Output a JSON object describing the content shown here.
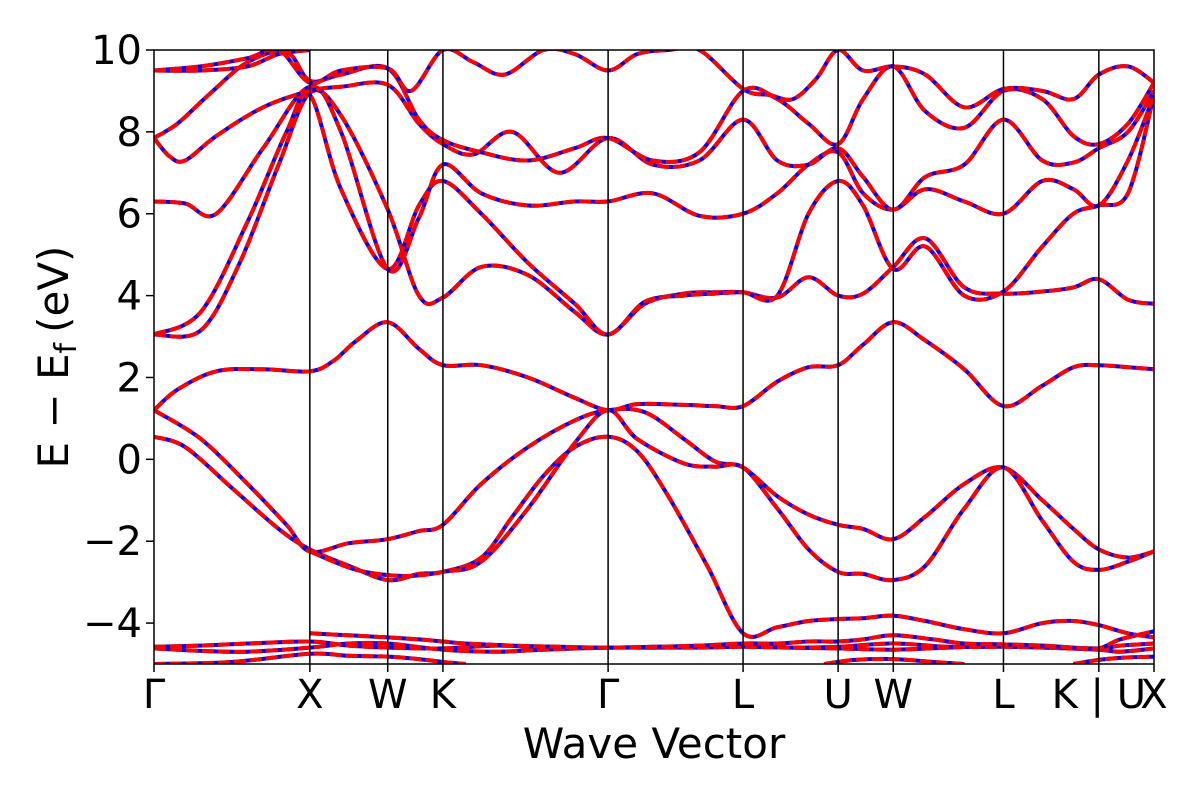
{
  "chart_data": {
    "type": "line",
    "xlabel": "Wave Vector",
    "ylabel": "E − E",
    "ylabel_subscript": "f",
    "ylabel_unit": "(eV)",
    "ylim": [
      -5,
      10
    ],
    "yticks": [
      -4,
      -2,
      0,
      2,
      4,
      6,
      8,
      10
    ],
    "ytick_labels": [
      "−4",
      "−2",
      "0",
      "2",
      "4",
      "6",
      "8",
      "10"
    ],
    "kpath": {
      "labels": [
        "Γ",
        "X",
        "W",
        "K",
        "Γ",
        "L",
        "U",
        "W",
        "L",
        "K | U",
        "X"
      ],
      "positions": [
        0.0,
        1.0,
        1.5,
        1.854,
        2.914,
        3.78,
        4.39,
        4.744,
        5.451,
        6.063,
        6.417
      ]
    },
    "colors": {
      "line_under": "#0000ff",
      "line_over": "#ff0000",
      "vline": "#000000",
      "frame": "#000000"
    },
    "series": [
      {
        "x": [
          0.0,
          0.3,
          0.6,
          1.0,
          1.25,
          1.5,
          1.854,
          2.2,
          2.5,
          2.914,
          3.2,
          3.5,
          3.78,
          4.1,
          4.39,
          4.744,
          5.1,
          5.451,
          5.7,
          6.063,
          6.2,
          6.417
        ],
        "y": [
          -4.58,
          -4.55,
          -4.5,
          -4.45,
          -4.55,
          -4.6,
          -4.62,
          -4.55,
          -4.6,
          -4.6,
          -4.6,
          -4.58,
          -4.55,
          -4.6,
          -4.62,
          -4.65,
          -4.6,
          -4.55,
          -4.58,
          -4.62,
          -4.55,
          -4.5
        ]
      },
      {
        "x": [
          0.0,
          0.3,
          0.6,
          1.0,
          1.25,
          1.5,
          1.854,
          2.2,
          2.5,
          2.914,
          3.2,
          3.5,
          3.78,
          4.1,
          4.39,
          4.744,
          5.1,
          5.451,
          5.7,
          6.063,
          6.2,
          6.417
        ],
        "y": [
          -4.62,
          -4.68,
          -4.7,
          -4.6,
          -4.5,
          -4.5,
          -4.65,
          -4.7,
          -4.65,
          -4.6,
          -4.6,
          -4.6,
          -4.58,
          -4.6,
          -4.58,
          -4.5,
          -4.58,
          -4.58,
          -4.6,
          -4.65,
          -4.7,
          -4.62
        ]
      },
      {
        "x": [
          0.0,
          0.5,
          1.0,
          1.25,
          1.5,
          1.7,
          1.854,
          2.0
        ],
        "y": [
          -5.0,
          -4.95,
          -4.75,
          -4.8,
          -4.82,
          -4.88,
          -4.95,
          -5.0
        ]
      },
      {
        "x": [
          4.3,
          4.5,
          4.744,
          5.0,
          5.2
        ],
        "y": [
          -5.0,
          -4.9,
          -4.88,
          -4.95,
          -5.0
        ]
      },
      {
        "x": [
          5.9,
          6.063,
          6.2,
          6.417
        ],
        "y": [
          -5.0,
          -4.9,
          -4.85,
          -4.82
        ]
      },
      {
        "x": [
          1.0,
          1.25,
          1.5,
          1.7,
          1.854,
          2.0,
          2.3,
          2.6,
          2.914,
          3.2,
          3.5,
          3.78,
          4.0,
          4.2,
          4.39,
          4.55,
          4.744,
          5.0,
          5.2,
          5.451,
          5.7,
          5.9,
          6.063,
          6.2,
          6.417
        ],
        "y": [
          -4.25,
          -4.3,
          -4.35,
          -4.4,
          -4.45,
          -4.5,
          -4.55,
          -4.58,
          -4.6,
          -4.58,
          -4.55,
          -4.5,
          -4.5,
          -4.45,
          -4.45,
          -4.4,
          -4.3,
          -4.4,
          -4.5,
          -4.52,
          -4.55,
          -4.6,
          -4.62,
          -4.4,
          -4.2
        ]
      },
      {
        "x": [
          0.0,
          0.2,
          0.5,
          0.8,
          1.0,
          1.25,
          1.5,
          1.7,
          1.854,
          2.1,
          2.3,
          2.5,
          2.7,
          2.914,
          3.1,
          3.3,
          3.55,
          3.78,
          4.0,
          4.2,
          4.39,
          4.55,
          4.744,
          4.95,
          5.2,
          5.451,
          5.7,
          5.9,
          6.063,
          6.25,
          6.417
        ],
        "y": [
          0.55,
          0.3,
          -0.7,
          -1.7,
          -2.2,
          -2.6,
          -2.95,
          -2.8,
          -2.75,
          -2.4,
          -1.4,
          -0.4,
          0.3,
          0.55,
          0.2,
          -0.9,
          -2.6,
          -4.25,
          -4.1,
          -3.95,
          -3.9,
          -3.88,
          -3.82,
          -3.95,
          -4.15,
          -4.25,
          -4.0,
          -3.95,
          -4.05,
          -4.25,
          -4.35
        ]
      },
      {
        "x": [
          0.0,
          0.3,
          0.6,
          0.85,
          1.0,
          1.25,
          1.5,
          1.7,
          1.854,
          2.1,
          2.4,
          2.7,
          2.914,
          3.15,
          3.4,
          3.6,
          3.78,
          4.0,
          4.2,
          4.39,
          4.55,
          4.744,
          4.95,
          5.2,
          5.451,
          5.7,
          5.9,
          6.063,
          6.25,
          6.417
        ],
        "y": [
          1.2,
          0.5,
          -0.6,
          -1.6,
          -2.25,
          -2.05,
          -1.95,
          -1.75,
          -1.6,
          -0.6,
          0.3,
          0.95,
          1.2,
          1.15,
          0.5,
          -0.05,
          -0.2,
          -0.9,
          -1.35,
          -1.6,
          -1.7,
          -1.95,
          -1.4,
          -0.6,
          -0.2,
          -1.0,
          -1.7,
          -2.2,
          -2.4,
          -2.25
        ]
      },
      {
        "x": [
          1.0,
          1.3,
          1.6,
          1.854,
          2.1,
          2.4,
          2.7,
          2.914,
          3.1,
          3.4,
          3.6,
          3.78,
          4.0,
          4.2,
          4.39,
          4.55,
          4.744,
          4.95,
          5.2,
          5.451,
          5.7,
          5.9,
          6.063,
          6.25,
          6.417
        ],
        "y": [
          -2.25,
          -2.7,
          -2.85,
          -2.75,
          -2.5,
          -1.2,
          0.4,
          1.2,
          0.5,
          -0.1,
          -0.18,
          -0.2,
          -1.2,
          -2.2,
          -2.75,
          -2.8,
          -2.95,
          -2.6,
          -1.2,
          -0.2,
          -1.5,
          -2.5,
          -2.7,
          -2.5,
          -2.25
        ]
      },
      {
        "x": [
          0.0,
          0.15,
          0.4,
          0.7,
          1.0,
          1.15,
          1.3,
          1.5,
          1.7,
          1.854,
          2.1,
          2.4,
          2.7,
          2.914,
          3.1,
          3.4,
          3.6,
          3.78,
          4.0,
          4.2,
          4.39,
          4.55,
          4.744,
          4.95,
          5.2,
          5.451,
          5.7,
          5.9,
          6.063,
          6.25,
          6.417
        ],
        "y": [
          1.2,
          1.7,
          2.15,
          2.2,
          2.15,
          2.4,
          2.9,
          3.35,
          2.7,
          2.3,
          2.3,
          2.0,
          1.5,
          1.2,
          1.35,
          1.33,
          1.3,
          1.3,
          1.9,
          2.25,
          2.3,
          2.8,
          3.35,
          2.9,
          2.2,
          1.3,
          1.8,
          2.25,
          2.3,
          2.25,
          2.2
        ]
      },
      {
        "x": [
          0.0,
          0.3,
          0.55,
          0.8,
          1.0,
          1.2,
          1.5,
          1.7,
          1.854,
          2.1,
          2.4,
          2.7,
          2.914,
          3.15,
          3.4,
          3.6,
          3.78,
          4.0,
          4.2,
          4.39,
          4.55,
          4.744,
          4.95,
          5.2,
          5.451,
          5.7,
          5.9,
          6.063,
          6.25,
          6.417
        ],
        "y": [
          3.05,
          3.15,
          4.8,
          7.2,
          8.95,
          8.4,
          6.1,
          4.0,
          3.95,
          4.7,
          4.5,
          3.6,
          3.05,
          3.8,
          4.05,
          4.08,
          4.08,
          3.95,
          4.45,
          4.0,
          4.05,
          4.7,
          5.4,
          4.2,
          4.05,
          4.1,
          4.2,
          4.4,
          3.9,
          3.8
        ]
      },
      {
        "x": [
          0.0,
          0.3,
          0.6,
          0.85,
          1.0,
          1.2,
          1.5,
          1.7,
          1.854,
          2.1,
          2.4,
          2.7,
          2.914,
          3.15,
          3.4,
          3.6,
          3.78,
          4.0,
          4.2,
          4.39,
          4.55,
          4.744,
          4.95,
          5.2,
          5.451,
          5.7,
          5.9,
          6.063,
          6.25,
          6.417
        ],
        "y": [
          3.05,
          3.6,
          5.8,
          8.0,
          8.9,
          6.6,
          4.65,
          6.2,
          6.8,
          6.0,
          4.8,
          3.8,
          3.05,
          3.85,
          4.0,
          4.05,
          4.08,
          4.0,
          6.0,
          6.8,
          6.2,
          4.65,
          5.2,
          4.0,
          4.1,
          5.2,
          6.0,
          6.2,
          6.5,
          8.9
        ]
      },
      {
        "x": [
          0.0,
          0.2,
          0.4,
          0.7,
          1.0,
          1.2,
          1.5,
          1.7,
          1.854,
          2.1,
          2.4,
          2.7,
          2.914,
          3.2,
          3.5,
          3.78,
          4.0,
          4.2,
          4.39,
          4.55,
          4.744,
          4.95,
          5.2,
          5.451,
          5.7,
          5.9,
          6.063,
          6.25,
          6.417
        ],
        "y": [
          6.3,
          6.25,
          6.0,
          7.6,
          9.1,
          8.0,
          4.65,
          5.9,
          7.2,
          6.5,
          6.2,
          6.3,
          6.3,
          6.5,
          5.95,
          6.0,
          6.5,
          7.2,
          7.5,
          6.5,
          6.1,
          6.6,
          6.3,
          6.0,
          6.8,
          6.6,
          6.2,
          7.3,
          8.9
        ]
      },
      {
        "x": [
          0.0,
          0.1,
          0.2,
          0.4,
          0.7,
          1.0,
          1.2,
          1.5,
          1.7,
          1.854,
          2.05,
          2.3,
          2.6,
          2.914,
          3.2,
          3.5,
          3.78,
          4.0,
          4.2,
          4.39,
          4.55,
          4.744,
          4.95,
          5.2,
          5.451,
          5.7,
          5.9,
          6.063,
          6.25,
          6.417
        ],
        "y": [
          7.85,
          7.4,
          7.3,
          7.9,
          8.6,
          9.0,
          9.1,
          9.15,
          8.2,
          7.7,
          7.45,
          8.0,
          7.0,
          7.85,
          7.2,
          7.3,
          8.3,
          7.3,
          7.2,
          7.6,
          6.9,
          6.1,
          6.9,
          7.2,
          8.3,
          7.3,
          7.25,
          7.6,
          8.0,
          9.0
        ]
      },
      {
        "x": [
          0.0,
          0.15,
          0.35,
          0.6,
          0.85,
          1.0,
          1.2,
          1.5,
          1.7,
          1.854,
          2.1,
          2.4,
          2.7,
          2.914,
          3.2,
          3.5,
          3.78,
          4.0,
          4.2,
          4.39,
          4.55,
          4.744,
          4.95,
          5.2,
          5.451,
          5.7,
          5.9,
          6.063,
          6.25,
          6.417
        ],
        "y": [
          7.85,
          8.2,
          8.9,
          9.7,
          9.95,
          9.25,
          9.4,
          9.55,
          8.3,
          7.8,
          7.5,
          7.3,
          7.6,
          7.85,
          7.3,
          7.5,
          9.0,
          8.8,
          8.2,
          7.7,
          8.8,
          9.6,
          8.5,
          8.1,
          9.0,
          8.8,
          7.9,
          7.7,
          8.2,
          9.2
        ]
      },
      {
        "x": [
          0.0,
          0.3,
          0.6,
          0.8,
          1.0,
          1.2,
          1.5,
          1.65,
          1.854,
          2.05,
          2.25,
          2.5,
          2.7,
          2.914,
          3.1,
          3.3,
          3.5,
          3.78,
          3.95,
          4.1,
          4.25,
          4.39,
          4.55,
          4.744,
          4.95,
          5.2,
          5.451,
          5.7,
          5.9,
          6.063,
          6.25,
          6.417
        ],
        "y": [
          9.5,
          9.6,
          9.8,
          10.0,
          9.2,
          9.5,
          9.55,
          9.0,
          10.0,
          9.7,
          9.4,
          10.0,
          9.9,
          9.5,
          9.9,
          10.0,
          10.0,
          9.05,
          8.9,
          8.8,
          9.3,
          10.0,
          9.5,
          9.6,
          9.4,
          8.6,
          9.05,
          9.0,
          8.8,
          9.4,
          9.6,
          9.2
        ]
      },
      {
        "x": [
          0.0,
          0.3,
          0.6,
          0.8,
          1.0
        ],
        "y": [
          9.5,
          9.5,
          9.6,
          9.9,
          10.0
        ]
      }
    ]
  }
}
